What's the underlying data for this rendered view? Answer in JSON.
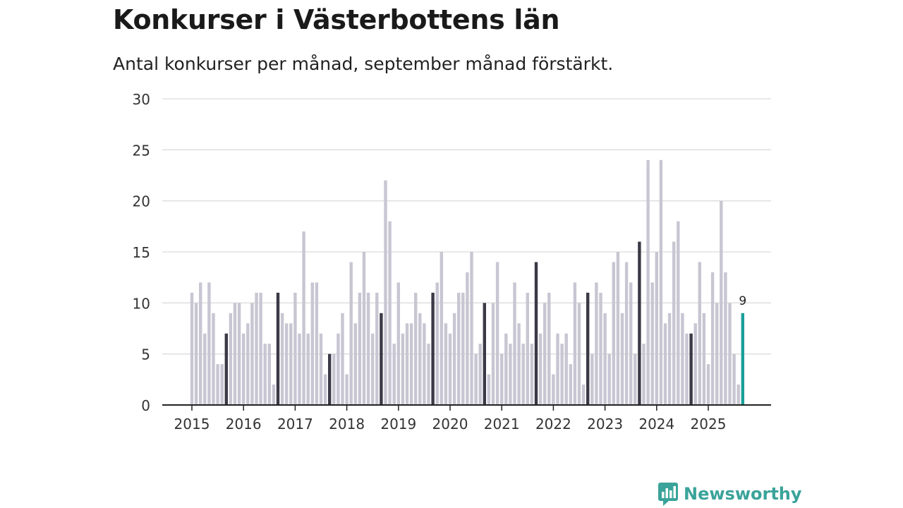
{
  "chart_data": {
    "type": "bar",
    "title": "Konkurser i Västerbottens län",
    "subtitle": "Antal konkurser per månad, september månad förstärkt.",
    "ylim": [
      0,
      30
    ],
    "yticks": [
      "0",
      "5",
      "10",
      "15",
      "20",
      "25",
      "30"
    ],
    "year_labels": [
      "2015",
      "2016",
      "2017",
      "2018",
      "2019",
      "2020",
      "2021",
      "2022",
      "2023",
      "2024",
      "2025"
    ],
    "start": "2015-01",
    "highlight_month": "september",
    "values": [
      11,
      10,
      12,
      7,
      12,
      9,
      4,
      4,
      7,
      9,
      10,
      10,
      7,
      8,
      10,
      11,
      11,
      6,
      6,
      2,
      11,
      9,
      8,
      8,
      11,
      7,
      17,
      7,
      12,
      12,
      7,
      3,
      5,
      5,
      7,
      9,
      3,
      14,
      8,
      11,
      15,
      11,
      7,
      11,
      9,
      22,
      18,
      6,
      12,
      7,
      8,
      8,
      11,
      9,
      8,
      6,
      11,
      12,
      15,
      8,
      7,
      9,
      11,
      11,
      13,
      15,
      5,
      6,
      10,
      3,
      10,
      14,
      5,
      7,
      6,
      12,
      8,
      6,
      11,
      6,
      14,
      7,
      10,
      11,
      3,
      7,
      6,
      7,
      4,
      12,
      10,
      2,
      11,
      5,
      12,
      11,
      9,
      5,
      14,
      15,
      9,
      14,
      12,
      5,
      16,
      6,
      24,
      12,
      15,
      24,
      8,
      9,
      16,
      18,
      9,
      7,
      7,
      8,
      14,
      9,
      4,
      13,
      10,
      20,
      13,
      10,
      5,
      2,
      9
    ],
    "last_value_label": "9",
    "colors": {
      "normal": "#c8c6d2",
      "september": "#3b3946",
      "current": "#1a9e98",
      "grid": "#dcdcdc",
      "axis": "#222222"
    }
  },
  "brand": {
    "name": "Newsworthy",
    "color": "#3aa39a"
  }
}
